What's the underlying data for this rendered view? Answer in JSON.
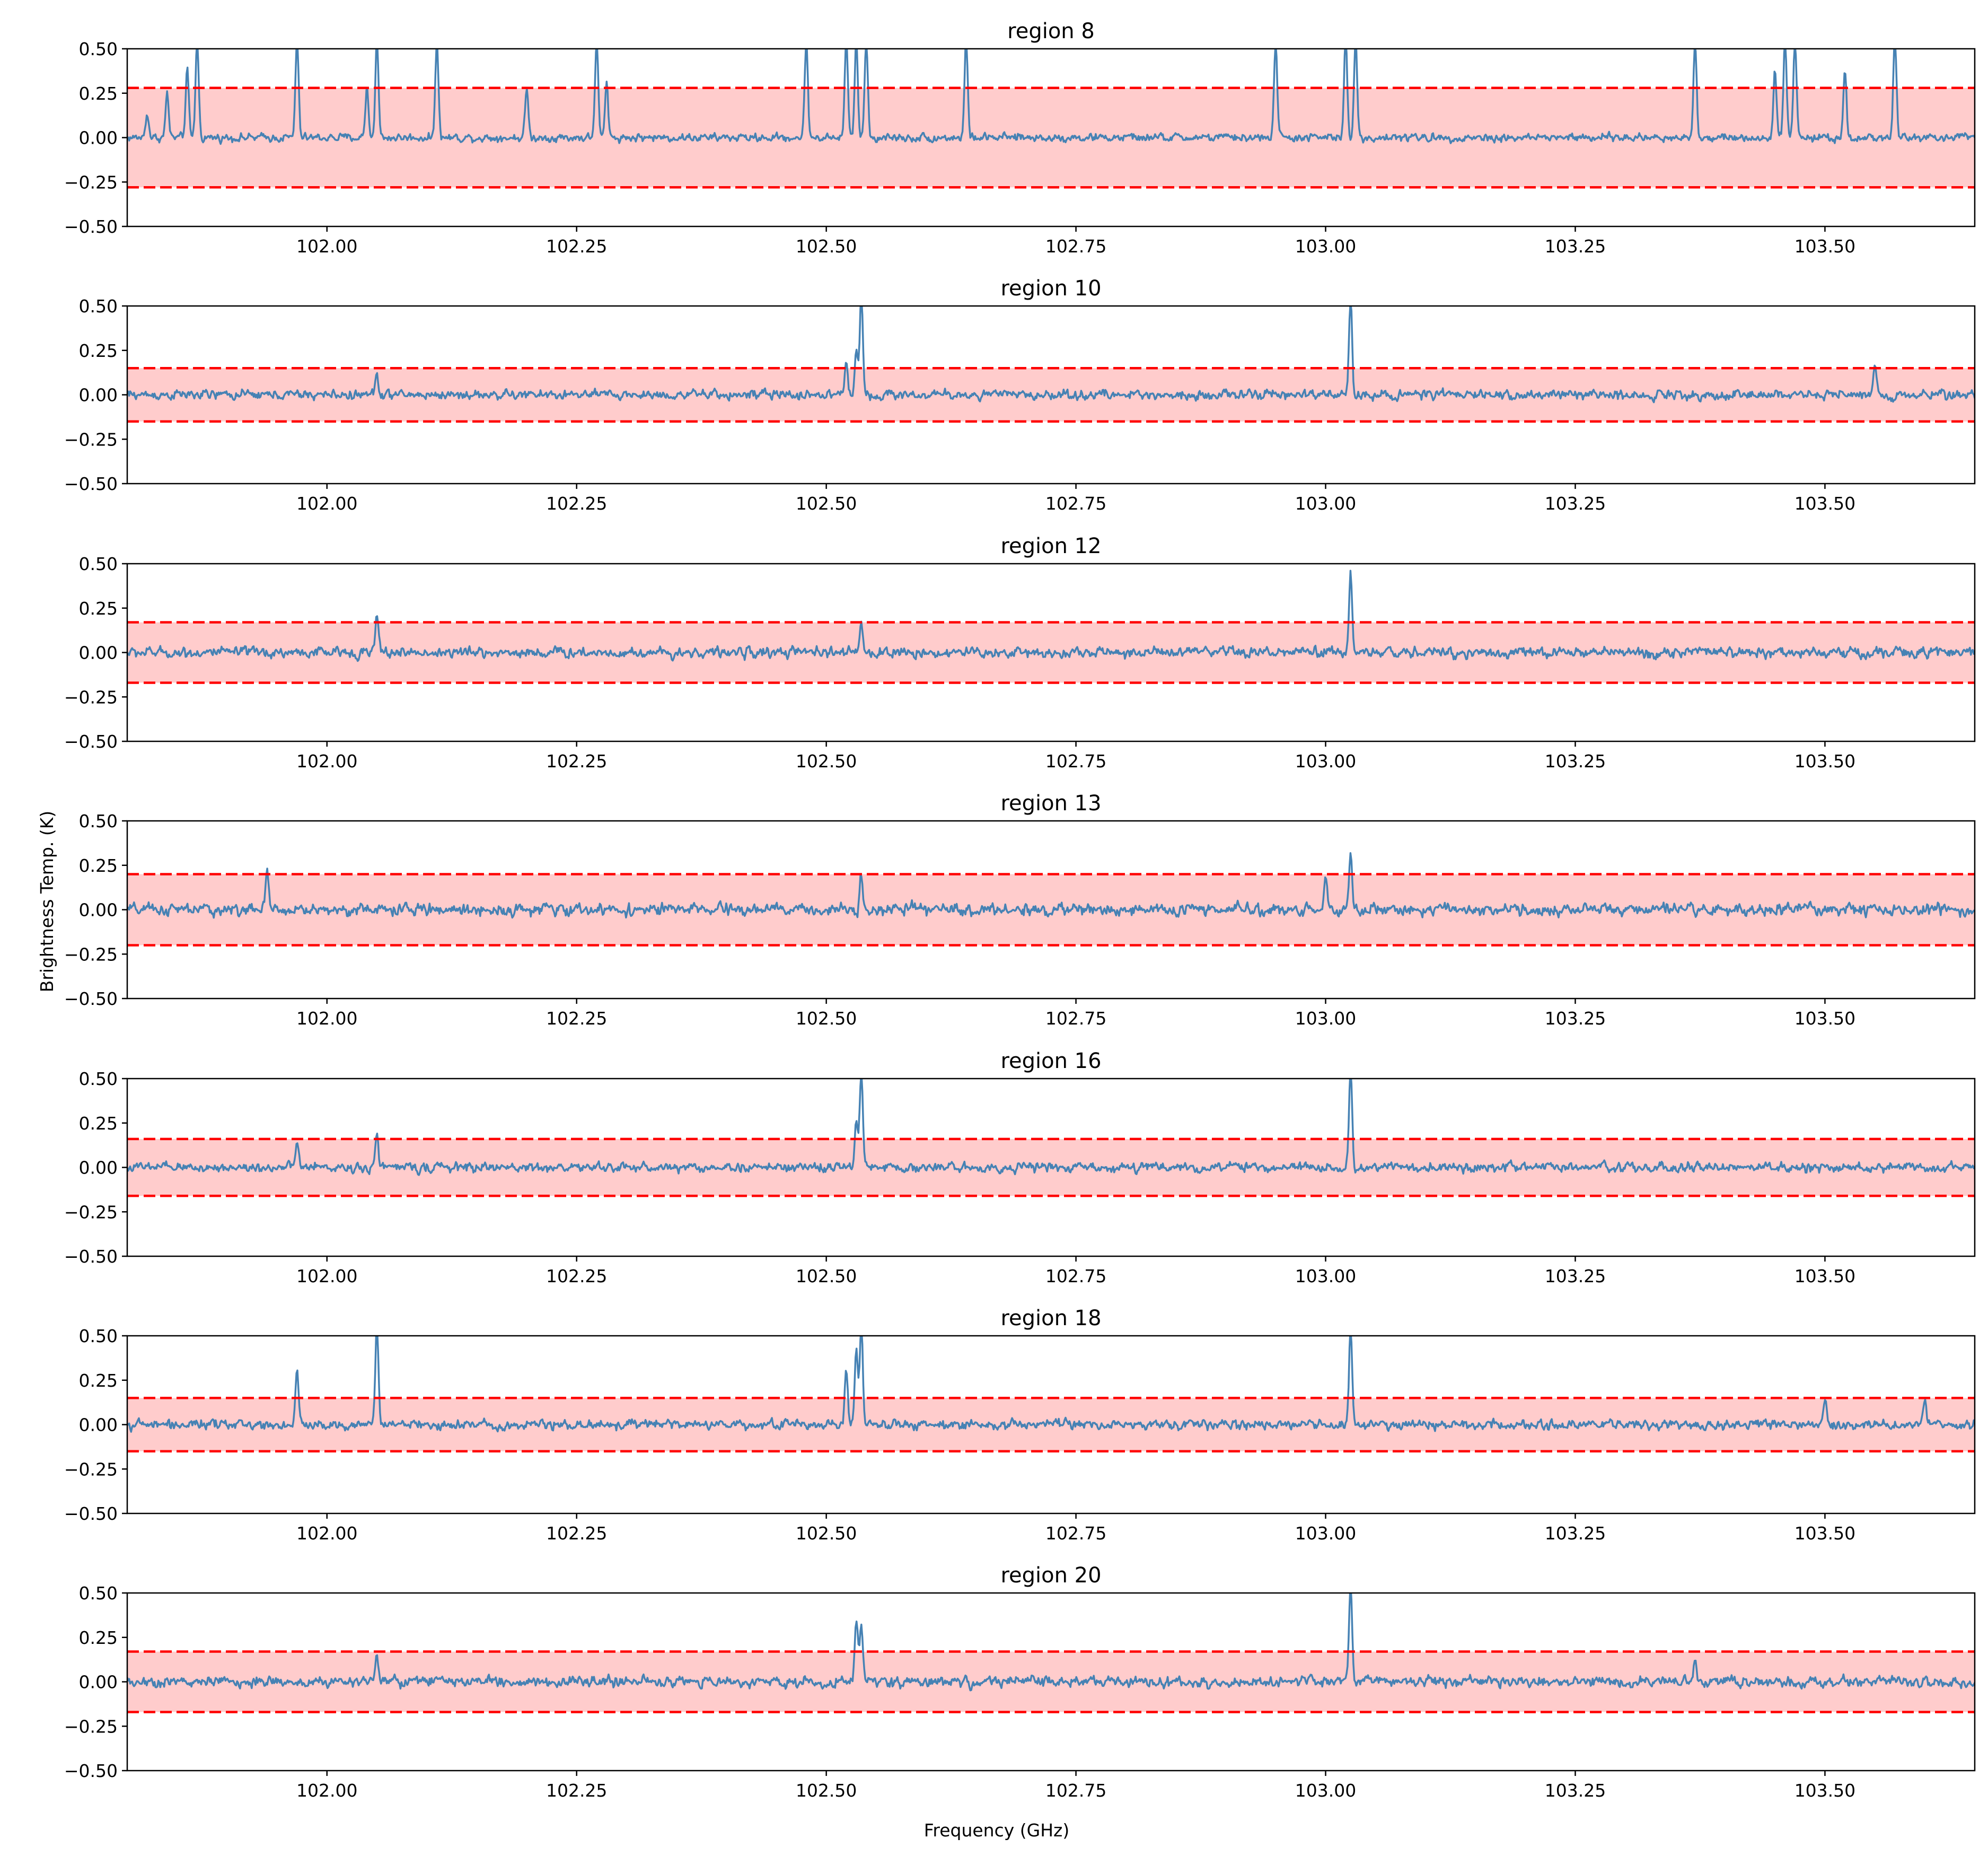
{
  "figure": {
    "xlabel": "Frequency (GHz)",
    "ylabel": "Brightness Temp. (K)"
  },
  "colors": {
    "spectrum": "#4682b4",
    "threshold_line": "#ff0000",
    "threshold_band": "#ffcccc",
    "axes": "#000000"
  },
  "chart_data": [
    {
      "type": "line",
      "title": "region 8",
      "xlim": [
        101.8,
        103.65
      ],
      "ylim": [
        -0.5,
        0.5
      ],
      "x_ticks": [
        102.0,
        102.25,
        102.5,
        102.75,
        103.0,
        103.25,
        103.5
      ],
      "x_tick_labels": [
        "102.00",
        "102.25",
        "102.50",
        "102.75",
        "103.00",
        "103.25",
        "103.50"
      ],
      "y_ticks": [
        -0.5,
        -0.25,
        0.0,
        0.25,
        0.5
      ],
      "y_tick_labels": [
        "−0.50",
        "−0.25",
        "0.00",
        "0.25",
        "0.50"
      ],
      "threshold": 0.28,
      "noise_rms": 0.035,
      "baseline": 0.0,
      "peaks": [
        [
          101.82,
          0.14
        ],
        [
          101.84,
          0.25
        ],
        [
          101.86,
          0.38
        ],
        [
          101.87,
          0.55
        ],
        [
          101.97,
          0.55
        ],
        [
          102.04,
          0.28
        ],
        [
          102.05,
          0.55
        ],
        [
          102.11,
          0.55
        ],
        [
          102.2,
          0.28
        ],
        [
          102.27,
          0.55
        ],
        [
          102.28,
          0.3
        ],
        [
          102.48,
          0.55
        ],
        [
          102.52,
          0.55
        ],
        [
          102.53,
          0.55
        ],
        [
          102.54,
          0.55
        ],
        [
          102.64,
          0.55
        ],
        [
          102.95,
          0.55
        ],
        [
          103.02,
          0.55
        ],
        [
          103.03,
          0.55
        ],
        [
          103.37,
          0.55
        ],
        [
          103.45,
          0.4
        ],
        [
          103.46,
          0.55
        ],
        [
          103.47,
          0.55
        ],
        [
          103.52,
          0.38
        ],
        [
          103.57,
          0.55
        ]
      ],
      "grid": false
    },
    {
      "type": "line",
      "title": "region 10",
      "xlim": [
        101.8,
        103.65
      ],
      "ylim": [
        -0.5,
        0.5
      ],
      "x_ticks": [
        102.0,
        102.25,
        102.5,
        102.75,
        103.0,
        103.25,
        103.5
      ],
      "x_tick_labels": [
        "102.00",
        "102.25",
        "102.50",
        "102.75",
        "103.00",
        "103.25",
        "103.50"
      ],
      "y_ticks": [
        -0.5,
        -0.25,
        0.0,
        0.25,
        0.5
      ],
      "y_tick_labels": [
        "−0.50",
        "−0.25",
        "0.00",
        "0.25",
        "0.50"
      ],
      "threshold": 0.15,
      "noise_rms": 0.04,
      "baseline": 0.0,
      "peaks": [
        [
          102.05,
          0.12
        ],
        [
          102.52,
          0.18
        ],
        [
          102.53,
          0.26
        ],
        [
          102.535,
          0.55
        ],
        [
          103.025,
          0.55
        ],
        [
          103.55,
          0.16
        ]
      ],
      "grid": false
    },
    {
      "type": "line",
      "title": "region 12",
      "xlim": [
        101.8,
        103.65
      ],
      "ylim": [
        -0.5,
        0.5
      ],
      "x_ticks": [
        102.0,
        102.25,
        102.5,
        102.75,
        103.0,
        103.25,
        103.5
      ],
      "x_tick_labels": [
        "102.00",
        "102.25",
        "102.50",
        "102.75",
        "103.00",
        "103.25",
        "103.50"
      ],
      "y_ticks": [
        -0.5,
        -0.25,
        0.0,
        0.25,
        0.5
      ],
      "y_tick_labels": [
        "−0.50",
        "−0.25",
        "0.00",
        "0.25",
        "0.50"
      ],
      "threshold": 0.17,
      "noise_rms": 0.045,
      "baseline": 0.0,
      "peaks": [
        [
          102.05,
          0.21
        ],
        [
          102.535,
          0.16
        ],
        [
          103.025,
          0.45
        ]
      ],
      "grid": false
    },
    {
      "type": "line",
      "title": "region 13",
      "xlim": [
        101.8,
        103.65
      ],
      "ylim": [
        -0.5,
        0.5
      ],
      "x_ticks": [
        102.0,
        102.25,
        102.5,
        102.75,
        103.0,
        103.25,
        103.5
      ],
      "x_tick_labels": [
        "102.00",
        "102.25",
        "102.50",
        "102.75",
        "103.00",
        "103.25",
        "103.50"
      ],
      "y_ticks": [
        -0.5,
        -0.25,
        0.0,
        0.25,
        0.5
      ],
      "y_tick_labels": [
        "−0.50",
        "−0.25",
        "0.00",
        "0.25",
        "0.50"
      ],
      "threshold": 0.2,
      "noise_rms": 0.05,
      "baseline": 0.0,
      "peaks": [
        [
          101.94,
          0.2
        ],
        [
          102.535,
          0.23
        ],
        [
          103.0,
          0.2
        ],
        [
          103.025,
          0.31
        ]
      ],
      "grid": false
    },
    {
      "type": "line",
      "title": "region 16",
      "xlim": [
        101.8,
        103.65
      ],
      "ylim": [
        -0.5,
        0.5
      ],
      "x_ticks": [
        102.0,
        102.25,
        102.5,
        102.75,
        103.0,
        103.25,
        103.5
      ],
      "x_tick_labels": [
        "102.00",
        "102.25",
        "102.50",
        "102.75",
        "103.00",
        "103.25",
        "103.50"
      ],
      "y_ticks": [
        -0.5,
        -0.25,
        0.0,
        0.25,
        0.5
      ],
      "y_tick_labels": [
        "−0.50",
        "−0.25",
        "0.00",
        "0.25",
        "0.50"
      ],
      "threshold": 0.16,
      "noise_rms": 0.04,
      "baseline": 0.0,
      "peaks": [
        [
          101.97,
          0.14
        ],
        [
          102.05,
          0.2
        ],
        [
          102.53,
          0.25
        ],
        [
          102.535,
          0.55
        ],
        [
          103.025,
          0.55
        ]
      ],
      "grid": false
    },
    {
      "type": "line",
      "title": "region 18",
      "xlim": [
        101.8,
        103.65
      ],
      "ylim": [
        -0.5,
        0.5
      ],
      "x_ticks": [
        102.0,
        102.25,
        102.5,
        102.75,
        103.0,
        103.25,
        103.5
      ],
      "x_tick_labels": [
        "102.00",
        "102.25",
        "102.50",
        "102.75",
        "103.00",
        "103.25",
        "103.50"
      ],
      "y_ticks": [
        -0.5,
        -0.25,
        0.0,
        0.25,
        0.5
      ],
      "y_tick_labels": [
        "−0.50",
        "−0.25",
        "0.00",
        "0.25",
        "0.50"
      ],
      "threshold": 0.15,
      "noise_rms": 0.04,
      "baseline": 0.0,
      "peaks": [
        [
          101.97,
          0.29
        ],
        [
          102.05,
          0.55
        ],
        [
          102.52,
          0.3
        ],
        [
          102.53,
          0.4
        ],
        [
          102.535,
          0.55
        ],
        [
          103.025,
          0.55
        ],
        [
          103.5,
          0.14
        ],
        [
          103.6,
          0.14
        ]
      ],
      "grid": false
    },
    {
      "type": "line",
      "title": "region 20",
      "xlim": [
        101.8,
        103.65
      ],
      "ylim": [
        -0.5,
        0.5
      ],
      "x_ticks": [
        102.0,
        102.25,
        102.5,
        102.75,
        103.0,
        103.25,
        103.5
      ],
      "x_tick_labels": [
        "102.00",
        "102.25",
        "102.50",
        "102.75",
        "103.00",
        "103.25",
        "103.50"
      ],
      "y_ticks": [
        -0.5,
        -0.25,
        0.0,
        0.25,
        0.5
      ],
      "y_tick_labels": [
        "−0.50",
        "−0.25",
        "0.00",
        "0.25",
        "0.50"
      ],
      "threshold": 0.17,
      "noise_rms": 0.045,
      "baseline": 0.0,
      "peaks": [
        [
          102.05,
          0.14
        ],
        [
          102.53,
          0.36
        ],
        [
          102.535,
          0.34
        ],
        [
          103.025,
          0.55
        ],
        [
          103.37,
          0.13
        ]
      ],
      "grid": false
    }
  ]
}
